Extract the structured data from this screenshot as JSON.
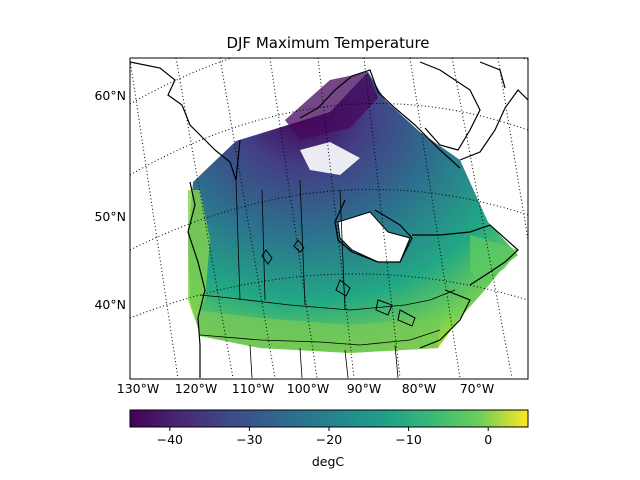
{
  "map": {
    "title": "DJF Maximum Temperature",
    "lat_labels": [
      "60°N",
      "50°N",
      "40°N"
    ],
    "lon_labels": [
      "130°W",
      "120°W",
      "110°W",
      "100°W",
      "90°W",
      "80°W",
      "70°W"
    ],
    "colormap": "viridis",
    "colors": {
      "min": "#440154",
      "low": "#3b528b",
      "mid": "#21918c",
      "high": "#5ec962",
      "max": "#fde725"
    },
    "colorbar": {
      "min": -45,
      "max": 5,
      "ticks": [
        -40,
        -30,
        -20,
        -10,
        0
      ],
      "tick_labels": [
        "−40",
        "−30",
        "−20",
        "−10",
        "0"
      ],
      "label": "degC"
    }
  }
}
